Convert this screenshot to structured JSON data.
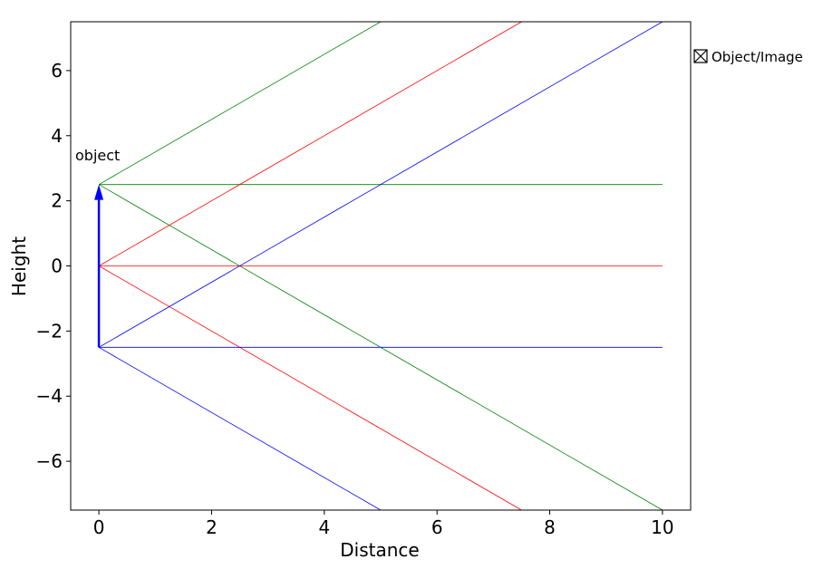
{
  "chart_data": {
    "type": "line",
    "xlabel": "Distance",
    "ylabel": "Height",
    "xlim": [
      -0.5,
      10.5
    ],
    "ylim": [
      -7.5,
      7.5
    ],
    "xticks": [
      0,
      2,
      4,
      6,
      8,
      10
    ],
    "yticks": [
      -6,
      -4,
      -2,
      0,
      2,
      4,
      6
    ],
    "xtick_labels": [
      "0",
      "2",
      "4",
      "6",
      "8",
      "10"
    ],
    "ytick_labels": [
      "−6",
      "−4",
      "−2",
      "0",
      "2",
      "4",
      "6"
    ],
    "grid": false,
    "object": {
      "x": 0,
      "y_base": -2.5,
      "y_tip": 2.5,
      "label": "object",
      "color": "#0000ff"
    },
    "rays": [
      {
        "color": "#008000",
        "x": [
          0,
          10
        ],
        "y": [
          2.5,
          2.5
        ]
      },
      {
        "color": "#008000",
        "x": [
          0,
          5
        ],
        "y": [
          2.5,
          7.5
        ]
      },
      {
        "color": "#008000",
        "x": [
          0,
          10
        ],
        "y": [
          2.5,
          -7.5
        ]
      },
      {
        "color": "#ff0000",
        "x": [
          0,
          10
        ],
        "y": [
          0,
          0
        ]
      },
      {
        "color": "#ff0000",
        "x": [
          0,
          7.5
        ],
        "y": [
          0,
          7.5
        ]
      },
      {
        "color": "#ff0000",
        "x": [
          0,
          7.5
        ],
        "y": [
          0,
          -7.5
        ]
      },
      {
        "color": "#0000ff",
        "x": [
          0,
          10
        ],
        "y": [
          -2.5,
          -2.5
        ]
      },
      {
        "color": "#0000ff",
        "x": [
          0,
          10
        ],
        "y": [
          -2.5,
          7.5
        ]
      },
      {
        "color": "#0000ff",
        "x": [
          0,
          5
        ],
        "y": [
          -2.5,
          -7.5
        ]
      }
    ],
    "legend": {
      "entries": [
        "Object/Image"
      ],
      "placement": "outside-top-right"
    }
  }
}
